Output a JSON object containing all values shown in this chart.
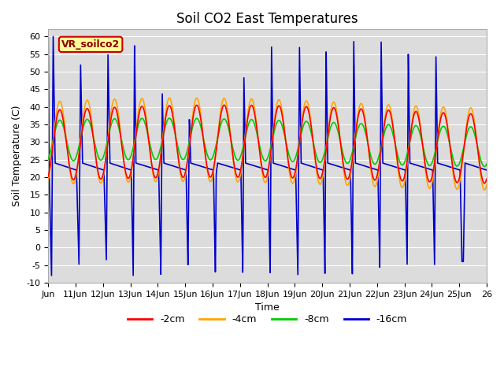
{
  "title": "Soil CO2 East Temperatures",
  "xlabel": "Time",
  "ylabel": "Soil Temperature (C)",
  "ylim": [
    -10,
    62
  ],
  "xlim": [
    0,
    16
  ],
  "plot_bg": "#dcdcdc",
  "figure_bg": "#ffffff",
  "colors": {
    "2cm": "#ff0000",
    "4cm": "#ffa500",
    "8cm": "#00cc00",
    "16cm": "#0000cc"
  },
  "legend_labels": [
    "-2cm",
    "-4cm",
    "-8cm",
    "-16cm"
  ],
  "annotation_text": "VR_soilco2",
  "annotation_bg": "#ffff99",
  "annotation_border": "#cc0000",
  "yticks": [
    -10,
    -5,
    0,
    5,
    10,
    15,
    20,
    25,
    30,
    35,
    40,
    45,
    50,
    55,
    60
  ],
  "xtick_labels": [
    "Jun",
    "11Jun",
    "12Jun",
    "13Jun",
    "14Jun",
    "15Jun",
    "16Jun",
    "17Jun",
    "18Jun",
    "19Jun",
    "20Jun",
    "21Jun",
    "22Jun",
    "23Jun",
    "24Jun",
    "25Jun",
    "26"
  ],
  "xtick_positions": [
    0,
    1,
    2,
    3,
    4,
    5,
    6,
    7,
    8,
    9,
    10,
    11,
    12,
    13,
    14,
    15,
    16
  ],
  "blue_spikes": [
    {
      "x_drop": 0.05,
      "x_trough": 0.12,
      "x_spike": 0.18,
      "x_recover": 0.25,
      "trough": -8,
      "spike": 60
    },
    {
      "x_drop": 1.05,
      "x_trough": 1.12,
      "x_spike": 1.18,
      "x_recover": 1.25,
      "trough": -5,
      "spike": 52
    },
    {
      "x_drop": 2.05,
      "x_trough": 2.12,
      "x_spike": 2.18,
      "x_recover": 2.25,
      "trough": -4,
      "spike": 55
    },
    {
      "x_drop": 3.05,
      "x_trough": 3.1,
      "x_spike": 3.15,
      "x_recover": 3.2,
      "trough": -9,
      "spike": 59
    },
    {
      "x_drop": 4.05,
      "x_trough": 4.11,
      "x_spike": 4.16,
      "x_recover": 4.22,
      "trough": -8,
      "spike": 44
    },
    {
      "x_drop": 5.05,
      "x_trough": 5.1,
      "x_spike": 5.15,
      "x_recover": 5.2,
      "trough": -6,
      "spike": 37
    },
    {
      "x_drop": 6.05,
      "x_trough": 6.1,
      "x_spike": 6.13,
      "x_recover": 6.18,
      "trough": -8,
      "spike": 21
    },
    {
      "x_drop": 7.05,
      "x_trough": 7.1,
      "x_spike": 7.14,
      "x_recover": 7.2,
      "trough": -8,
      "spike": 49
    },
    {
      "x_drop": 8.05,
      "x_trough": 8.1,
      "x_spike": 8.15,
      "x_recover": 8.21,
      "trough": -8,
      "spike": 57
    },
    {
      "x_drop": 9.05,
      "x_trough": 9.11,
      "x_spike": 9.17,
      "x_recover": 9.23,
      "trough": -8,
      "spike": 57
    },
    {
      "x_drop": 10.05,
      "x_trough": 10.1,
      "x_spike": 10.14,
      "x_recover": 10.2,
      "trough": -8,
      "spike": 57
    },
    {
      "x_drop": 11.05,
      "x_trough": 11.1,
      "x_spike": 11.15,
      "x_recover": 11.21,
      "trough": -8,
      "spike": 59
    },
    {
      "x_drop": 12.05,
      "x_trough": 12.1,
      "x_spike": 12.15,
      "x_recover": 12.21,
      "trough": -6,
      "spike": 59
    },
    {
      "x_drop": 13.05,
      "x_trough": 13.1,
      "x_spike": 13.14,
      "x_recover": 13.2,
      "trough": -5,
      "spike": 56
    },
    {
      "x_drop": 14.05,
      "x_trough": 14.1,
      "x_spike": 14.15,
      "x_recover": 14.21,
      "trough": -5,
      "spike": 55
    },
    {
      "x_drop": 15.05,
      "x_trough": 15.1,
      "x_spike": 15.15,
      "x_recover": 15.21,
      "trough": -4,
      "spike": -4
    }
  ]
}
